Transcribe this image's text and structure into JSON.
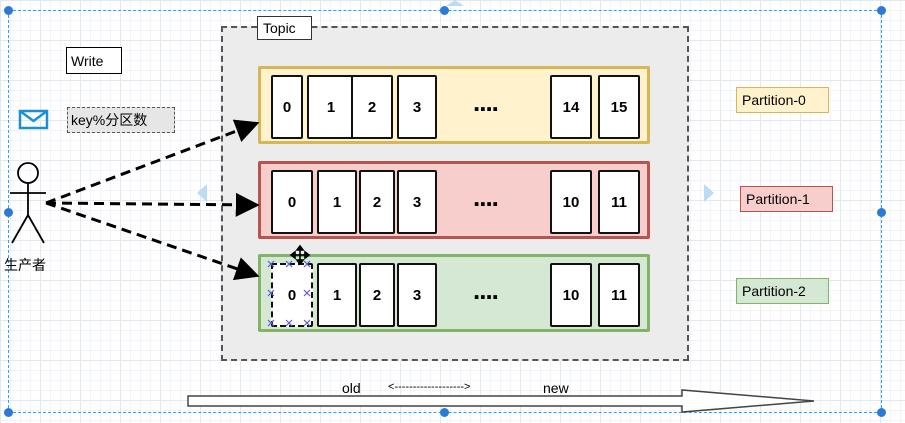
{
  "topic": {
    "label": "Topic"
  },
  "write_label": "Write",
  "key_label": "key%分区数",
  "producer_label": "生产者",
  "timeline": {
    "old": "old",
    "new": "new",
    "direction": "<------------------->"
  },
  "ellipsis": "....",
  "partitions": [
    {
      "name": "Partition-0",
      "fill": "#fff2cc",
      "border": "#d6b656",
      "offsets": [
        "0",
        "1",
        "2",
        "3",
        "14",
        "15"
      ]
    },
    {
      "name": "Partition-1",
      "fill": "#f8cecc",
      "border": "#b85450",
      "offsets": [
        "0",
        "1",
        "2",
        "3",
        "10",
        "11"
      ]
    },
    {
      "name": "Partition-2",
      "fill": "#d5e8d4",
      "border": "#82b366",
      "offsets": [
        "0",
        "1",
        "2",
        "3",
        "10",
        "11"
      ]
    }
  ],
  "colors": {
    "selection": "#29a0ff",
    "handle": "#2b7bd6",
    "envelope": "#1a8fd6"
  },
  "icons": [
    "envelope-icon",
    "stick-figure-icon",
    "move-cursor-icon"
  ]
}
